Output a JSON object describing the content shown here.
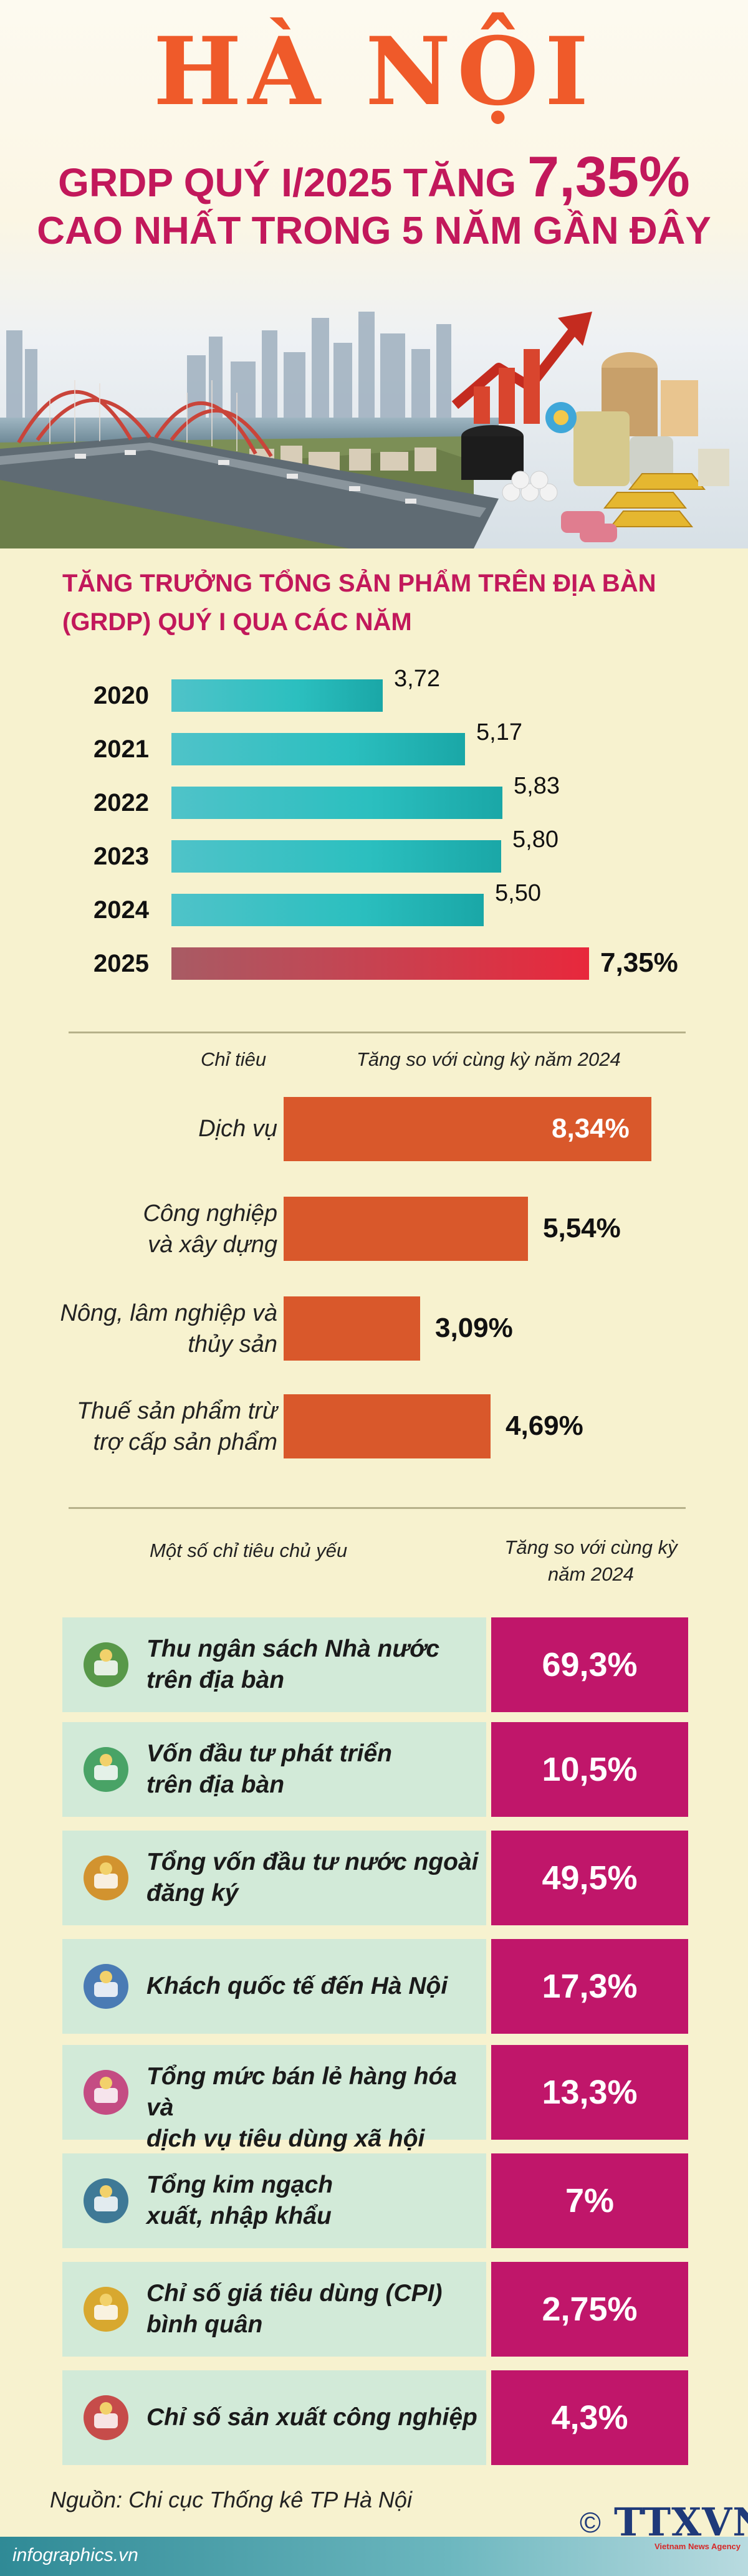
{
  "header": {
    "title": "HÀ NỘI",
    "subtitle_line1_prefix": "GRDP QUÝ I/2025 TĂNG",
    "subtitle_line1_highlight": "7,35%",
    "subtitle_line2": "CAO NHẤT TRONG 5 NĂM GẦN ĐÂY"
  },
  "colors": {
    "title": "#ef5a2a",
    "subtitle": "#c2185b",
    "bar_teal": "#2bbfbf",
    "bar_2025": "#e8283c",
    "sector_bar": "#d9582b",
    "indicator_pct_bg": "#c0166a",
    "indicator_row_bg": "#d2ead8",
    "background": "#f7f2cf"
  },
  "chart_data": [
    {
      "type": "bar",
      "orientation": "horizontal",
      "title": "TĂNG TRƯỞNG TỔNG SẢN PHẨM TRÊN ĐỊA BÀN (GRDP) QUÝ I QUA CÁC NĂM",
      "title_line1": "TĂNG TRƯỞNG TỔNG SẢN PHẨM TRÊN ĐỊA BÀN",
      "title_line2": "(GRDP) QUÝ I QUA CÁC NĂM",
      "categories": [
        "2020",
        "2021",
        "2022",
        "2023",
        "2024",
        "2025"
      ],
      "values": [
        3.72,
        5.17,
        5.83,
        5.8,
        5.5,
        7.35
      ],
      "value_labels": [
        "3,72",
        "5,17",
        "5,83",
        "5,80",
        "5,50",
        "7,35%"
      ],
      "xlim": [
        0,
        7.35
      ],
      "grid": false
    },
    {
      "type": "bar",
      "orientation": "horizontal",
      "column_left": "Chỉ tiêu",
      "column_right": "Tăng so với cùng kỳ năm 2024",
      "categories": [
        [
          "Dịch vụ"
        ],
        [
          "Công nghiệp",
          "và xây dựng"
        ],
        [
          "Nông, lâm nghiệp và",
          "thủy sản"
        ],
        [
          "Thuế sản phẩm trừ",
          "trợ cấp sản phẩm"
        ]
      ],
      "values": [
        8.34,
        5.54,
        3.09,
        4.69
      ],
      "value_labels": [
        "8,34%",
        "5,54%",
        "3,09%",
        "4,69%"
      ],
      "xlim": [
        0,
        8.34
      ],
      "grid": false
    },
    {
      "type": "table",
      "column_left": "Một số chỉ tiêu chủ yếu",
      "column_right_line1": "Tăng so với cùng kỳ",
      "column_right_line2": "năm 2024",
      "rows": [
        {
          "label": [
            "Thu ngân sách Nhà nước",
            "trên địa bàn"
          ],
          "value": "69,3%",
          "icon": "money-bag-icon"
        },
        {
          "label": [
            "Vốn đầu tư phát triển",
            "trên địa bàn"
          ],
          "value": "10,5%",
          "icon": "cash-hand-icon"
        },
        {
          "label": [
            "Tổng vốn đầu tư nước ngoài",
            "đăng ký"
          ],
          "value": "49,5%",
          "icon": "globe-coins-icon"
        },
        {
          "label": [
            "Khách quốc tế đến Hà Nội"
          ],
          "value": "17,3%",
          "icon": "traveler-icon"
        },
        {
          "label": [
            "Tổng mức bán lẻ hàng hóa và",
            "dịch vụ tiêu dùng xã hội"
          ],
          "value": "13,3%",
          "icon": "shopping-cart-icon"
        },
        {
          "label": [
            "Tổng kim ngạch",
            "xuất, nhập khẩu"
          ],
          "value": "7%",
          "icon": "port-crane-icon"
        },
        {
          "label": [
            "Chỉ số giá tiêu dùng (CPI)",
            "bình quân"
          ],
          "value": "2,75%",
          "icon": "price-cycle-icon"
        },
        {
          "label": [
            "Chỉ số sản xuất công nghiệp"
          ],
          "value": "4,3%",
          "icon": "factory-icon"
        }
      ]
    }
  ],
  "footer": {
    "source": "Nguồn: Chi cục Thống kê TP Hà Nội",
    "website": "infographics.vn",
    "copyright": "©",
    "logo": "TTXVN",
    "logo_sub": "Vietnam News Agency"
  }
}
